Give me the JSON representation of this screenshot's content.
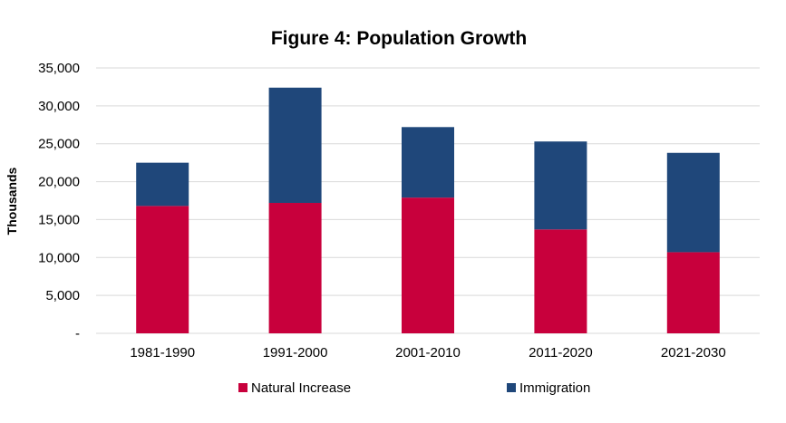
{
  "chart_data": {
    "type": "bar",
    "stacked": true,
    "title": "Figure 4: Population Growth",
    "xlabel": "",
    "ylabel": "Thousands",
    "categories": [
      "1981-1990",
      "1991-2000",
      "2001-2010",
      "2011-2020",
      "2021-2030"
    ],
    "series": [
      {
        "name": "Natural Increase",
        "color": "#c8003c",
        "values": [
          16800,
          17200,
          17900,
          13700,
          10700
        ]
      },
      {
        "name": "Immigration",
        "color": "#1f477a",
        "values": [
          5700,
          15200,
          9300,
          11600,
          13100
        ]
      }
    ],
    "ylim": [
      0,
      35000
    ],
    "yticks": [
      {
        "value": 0,
        "label": "-"
      },
      {
        "value": 5000,
        "label": "5,000"
      },
      {
        "value": 10000,
        "label": "10,000"
      },
      {
        "value": 15000,
        "label": "15,000"
      },
      {
        "value": 20000,
        "label": "20,000"
      },
      {
        "value": 25000,
        "label": "25,000"
      },
      {
        "value": 30000,
        "label": "30,000"
      },
      {
        "value": 35000,
        "label": "35,000"
      }
    ],
    "grid": true,
    "legend_position": "bottom"
  }
}
